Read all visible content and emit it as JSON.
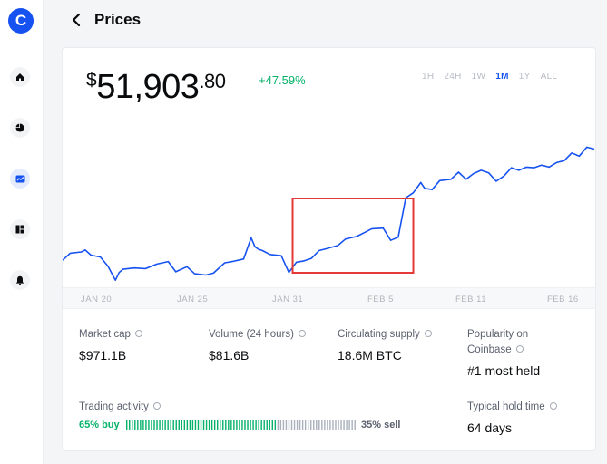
{
  "sidebar": {
    "logo_letter": "C",
    "icons": [
      "home-icon",
      "portfolio-pie-icon",
      "prices-chart-icon",
      "dashboard-icon",
      "notifications-bell-icon"
    ]
  },
  "header": {
    "back_icon": "chevron-left-icon",
    "title": "Prices"
  },
  "price": {
    "dollar_sign": "$",
    "whole": "51,903",
    "cents": ".80",
    "change": "+47.59%"
  },
  "ranges": [
    "1H",
    "24H",
    "1W",
    "1M",
    "1Y",
    "ALL"
  ],
  "active_range": "1M",
  "x_ticks": [
    "JAN 20",
    "JAN 25",
    "JAN 31",
    "FEB 5",
    "FEB 11",
    "FEB 16"
  ],
  "stats": {
    "market_cap": {
      "label": "Market cap",
      "value": "$971.1B"
    },
    "volume": {
      "label": "Volume (24 hours)",
      "value": "$81.6B"
    },
    "supply": {
      "label": "Circulating supply",
      "value": "18.6M BTC"
    },
    "popularity": {
      "label_line1": "Popularity on",
      "label_line2": "Coinbase",
      "value": "#1 most held"
    },
    "trading": {
      "label": "Trading activity",
      "buy": "65% buy",
      "sell": "35% sell",
      "buy_fraction": 0.65
    },
    "hold": {
      "label": "Typical hold time",
      "value": "64 days"
    }
  },
  "colors": {
    "accent": "#1652f0",
    "positive": "#05b169",
    "highlight_box": "#e53935",
    "sell_bar": "#a9b0bc"
  },
  "chart_data": {
    "type": "line",
    "title": "",
    "xlabel": "",
    "ylabel": "",
    "x": [
      0,
      0.4,
      1.0,
      1.2,
      1.5,
      2.0,
      2.4,
      2.8,
      3.0,
      3.2,
      3.8,
      4.4,
      5.0,
      5.6,
      6.0,
      6.6,
      7.0,
      7.6,
      8.0,
      8.6,
      9.0,
      9.6,
      10.0,
      10.2,
      10.4,
      10.6,
      11.0,
      11.6,
      12.0,
      12.4,
      12.8,
      13.2,
      13.6,
      14.0,
      14.6,
      15.0,
      15.6,
      16.0,
      16.4,
      17.0,
      17.4,
      17.8,
      18.2,
      18.6,
      19.0,
      19.2,
      19.6,
      20.0,
      20.6,
      21.0,
      21.4,
      21.8,
      22.2,
      22.6,
      23.0,
      23.4,
      23.8,
      24.2,
      24.6,
      25.0,
      25.4,
      25.8,
      26.2,
      26.6,
      27.0,
      27.4,
      27.8,
      28.2
    ],
    "x_unit": "days since Jan 18",
    "y": [
      35500,
      36600,
      36800,
      37100,
      36300,
      36000,
      34600,
      32400,
      33600,
      34100,
      34300,
      34200,
      34900,
      35300,
      33700,
      34500,
      33400,
      33200,
      33500,
      35100,
      35300,
      35700,
      39000,
      37600,
      37200,
      37000,
      36400,
      36200,
      33600,
      35200,
      35400,
      35800,
      37000,
      37300,
      37800,
      38800,
      39200,
      39800,
      40400,
      40500,
      38600,
      39100,
      45200,
      46000,
      47600,
      46700,
      46500,
      47900,
      48100,
      49200,
      48100,
      49000,
      49500,
      49100,
      47800,
      48600,
      49900,
      49500,
      50000,
      49900,
      50300,
      50000,
      50700,
      51000,
      52200,
      51700,
      53100,
      52800
    ],
    "highlight_x_range": [
      12.2,
      18.6
    ]
  }
}
